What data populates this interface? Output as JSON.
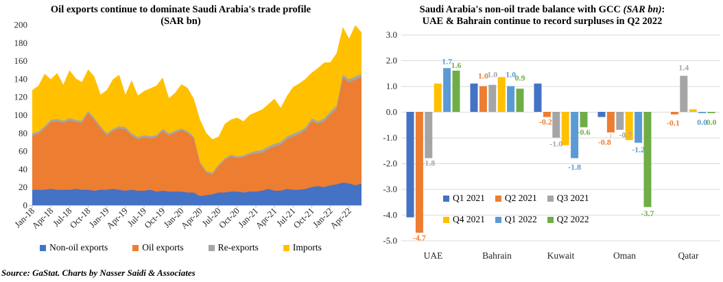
{
  "source_note": "Source: GaStat. Charts by Nasser Saidi & Associates",
  "palette": {
    "blue": "#4472C4",
    "orange": "#ED7D31",
    "gray": "#A5A5A5",
    "yellow": "#FFC000",
    "light_blue": "#5B9BD5",
    "green": "#70AD47",
    "axis_line": "#BFBFBF",
    "gridline": "#D9D9D9",
    "tick_text": "#262626"
  },
  "chart_data": [
    {
      "type": "area",
      "stacked": true,
      "title": {
        "line1": "Oil exports continue to dominate Saudi Arabia's trade profile",
        "line2": "(SAR bn)"
      },
      "ylim": [
        0,
        200
      ],
      "yticks": [
        0,
        20,
        40,
        60,
        80,
        100,
        120,
        140,
        160,
        180,
        200
      ],
      "grid": false,
      "legend_position": "bottom",
      "x_tick_every": 3,
      "x": [
        "Jan-18",
        "Feb-18",
        "Mar-18",
        "Apr-18",
        "May-18",
        "Jun-18",
        "Jul-18",
        "Aug-18",
        "Sep-18",
        "Oct-18",
        "Nov-18",
        "Dec-18",
        "Jan-19",
        "Feb-19",
        "Mar-19",
        "Apr-19",
        "May-19",
        "Jun-19",
        "Jul-19",
        "Aug-19",
        "Sep-19",
        "Oct-19",
        "Nov-19",
        "Dec-19",
        "Jan-20",
        "Feb-20",
        "Mar-20",
        "Apr-20",
        "May-20",
        "Jun-20",
        "Jul-20",
        "Aug-20",
        "Sep-20",
        "Oct-20",
        "Nov-20",
        "Dec-20",
        "Jan-21",
        "Feb-21",
        "Mar-21",
        "Apr-21",
        "May-21",
        "Jun-21",
        "Jul-21",
        "Aug-21",
        "Sep-21",
        "Oct-21",
        "Nov-21",
        "Dec-21",
        "Jan-22",
        "Feb-22",
        "Mar-22",
        "Apr-22",
        "May-22",
        "Jun-22"
      ],
      "series": [
        {
          "name": "Non-oil exports",
          "color": "#4472C4",
          "values": [
            17,
            17,
            17,
            18,
            17,
            17,
            17,
            18,
            17,
            17,
            16,
            17,
            17,
            18,
            17,
            16,
            17,
            16,
            16,
            17,
            15,
            16,
            15,
            15,
            15,
            14,
            14,
            10,
            11,
            12,
            14,
            14,
            15,
            15,
            14,
            15,
            15,
            16,
            18,
            16,
            16,
            18,
            17,
            17,
            18,
            20,
            21,
            20,
            22,
            23,
            25,
            24,
            22,
            24
          ]
        },
        {
          "name": "Oil exports",
          "color": "#ED7D31",
          "values": [
            60,
            62,
            68,
            74,
            76,
            74,
            77,
            74,
            74,
            85,
            78,
            68,
            60,
            64,
            68,
            68,
            60,
            57,
            59,
            57,
            60,
            66,
            62,
            65,
            68,
            66,
            60,
            36,
            25,
            22,
            29,
            36,
            39,
            37,
            39,
            41,
            42,
            42,
            44,
            49,
            51,
            55,
            59,
            62,
            65,
            73,
            69,
            73,
            78,
            84,
            116,
            112,
            117,
            118
          ]
        },
        {
          "name": "Re-exports",
          "color": "#A5A5A5",
          "values": [
            2.5,
            2.5,
            2.5,
            2.5,
            2.5,
            2.5,
            2.5,
            2.5,
            2.5,
            2.5,
            2.5,
            2.5,
            2.5,
            2.5,
            2.5,
            2.5,
            2.5,
            2.5,
            2.5,
            2.5,
            2.5,
            2.5,
            2.5,
            2.5,
            2,
            2,
            2,
            2,
            2,
            2,
            2,
            2,
            2,
            2,
            2,
            2,
            3,
            3,
            3,
            3,
            3,
            3,
            3,
            3,
            3,
            3,
            3,
            3,
            3.5,
            3.5,
            3.5,
            3.5,
            3.5,
            3.5
          ]
        },
        {
          "name": "Imports",
          "color": "#FFC000",
          "values": [
            48,
            51,
            58,
            45,
            51,
            40,
            53,
            46,
            43,
            46,
            46,
            35,
            48,
            55,
            57,
            36,
            59,
            46,
            49,
            53,
            55,
            57,
            39,
            42,
            49,
            48,
            42,
            47,
            42,
            37,
            31,
            38,
            39,
            43,
            38,
            42,
            43,
            45,
            47,
            50,
            38,
            45,
            52,
            53,
            54,
            51,
            59,
            62,
            55,
            58,
            53,
            45,
            57,
            46
          ]
        }
      ]
    },
    {
      "type": "bar",
      "title": {
        "line1_pre": "Saudi Arabia's non-oil trade balance with GCC ",
        "line1_italic": "(SAR bn)",
        "line1_post": ":",
        "line2": "UAE & Bahrain continue to record surpluses in Q2 2022"
      },
      "categories": [
        "UAE",
        "Bahrain",
        "Kuwait",
        "Oman",
        "Qatar"
      ],
      "ylim": [
        -5,
        3
      ],
      "ytick_step": 1,
      "ytick_labels": [
        "3.0",
        "2.0",
        "1.0",
        "0.0",
        "-1.0",
        "-2.0",
        "-3.0",
        "-4.0",
        "-5.0"
      ],
      "grid": true,
      "legend_position": "inside-bottom",
      "series": [
        {
          "name": "Q1 2021",
          "color": "#4472C4",
          "values": [
            -4.1,
            1.1,
            1.1,
            -0.2,
            0
          ],
          "labels": [
            null,
            null,
            null,
            null,
            null
          ]
        },
        {
          "name": "Q2 2021",
          "color": "#ED7D31",
          "values": [
            -4.7,
            1.0,
            -0.2,
            -0.8,
            -0.1
          ],
          "labels": [
            "-4.7",
            {
              "t": "1.0",
              "dy": -7
            },
            {
              "t": "-0.2",
              "dx": -2
            },
            {
              "t": "-0.8",
              "dx": -9,
              "dy": 7,
              "leader": true
            },
            {
              "t": "-0.1",
              "dx": -2,
              "dy": 5
            }
          ]
        },
        {
          "name": "Q3 2021",
          "color": "#A5A5A5",
          "values": [
            -1.8,
            1.05,
            -1.0,
            -0.7,
            1.4
          ],
          "labels": [
            "-1.8",
            {
              "t": "1.0",
              "dy": -7
            },
            {
              "t": "-1.0",
              "dy": 2
            },
            {
              "t": "-0.7",
              "dx": 8
            },
            {
              "t": "1.4",
              "dy": -4
            }
          ]
        },
        {
          "name": "Q4 2021",
          "color": "#FFC000",
          "values": [
            1.1,
            1.35,
            -1.3,
            -1.1,
            0.1
          ],
          "labels": [
            null,
            null,
            null,
            null,
            null
          ]
        },
        {
          "name": "Q1 2022",
          "color": "#5B9BD5",
          "values": [
            1.7,
            1.0,
            -1.8,
            -1.2,
            -0.05
          ],
          "labels": [
            {
              "t": "1.7",
              "dy": -2
            },
            {
              "t": "1.0",
              "dy": -9
            },
            {
              "t": "-1.8",
              "dy": 6
            },
            {
              "t": "-1.2",
              "dy": 3
            },
            {
              "t": "0.0",
              "dy": 6
            }
          ]
        },
        {
          "name": "Q2 2022",
          "color": "#70AD47",
          "values": [
            1.6,
            0.9,
            -0.6,
            -3.7,
            -0.05
          ],
          "labels": [
            "1.6",
            {
              "t": "0.9",
              "dy": -8
            },
            "-0.6",
            {
              "t": "-3.7",
              "dy": 2
            },
            {
              "t": "0.0",
              "dy": 6
            }
          ]
        }
      ],
      "legend_rows": [
        [
          "Q1 2021",
          "Q2 2021",
          "Q3 2021"
        ],
        [
          "Q4 2021",
          "Q1 2022",
          "Q2 2022"
        ]
      ]
    }
  ]
}
